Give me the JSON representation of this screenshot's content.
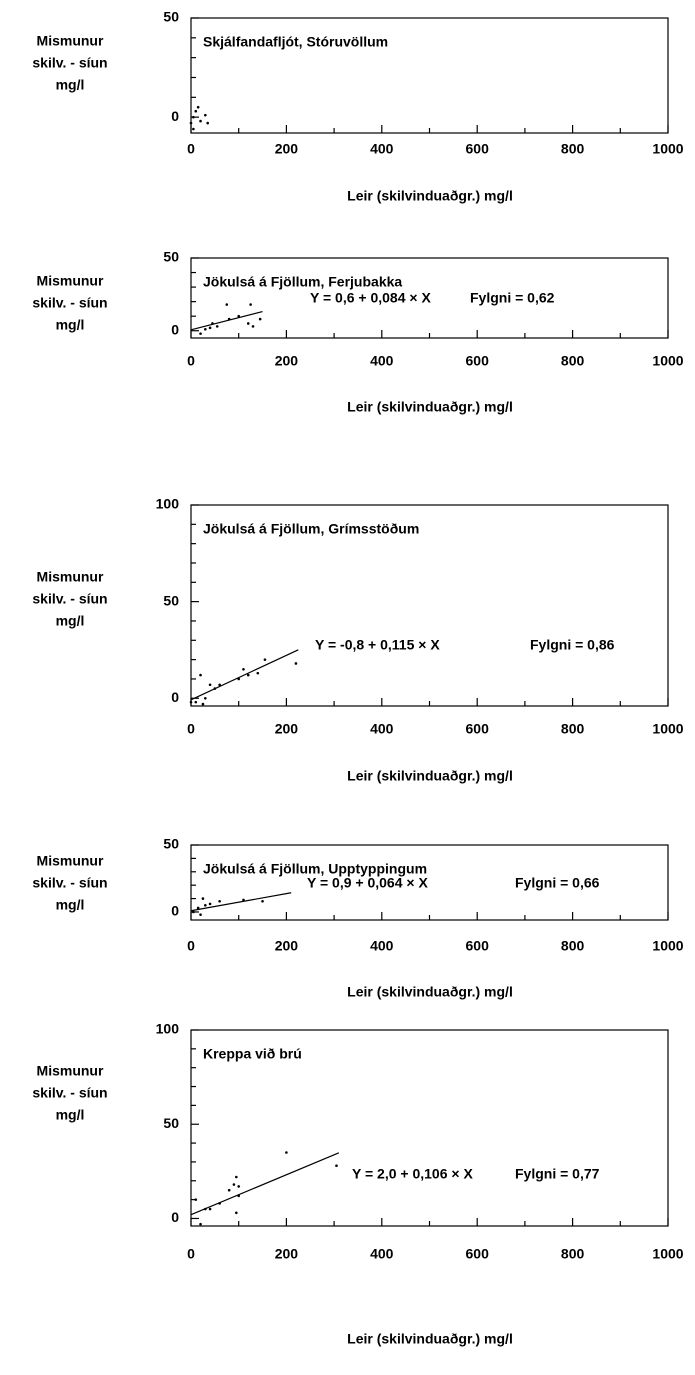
{
  "chart_data": [
    {
      "type": "scatter",
      "title": "Skjálfandafljót, Stóruvöllum",
      "ylabel": [
        "Mismunur",
        "skilv. - síun",
        "mg/l"
      ],
      "xlabel": "Leir (skilvinduaðgr.)  mg/l",
      "x": [
        0,
        5,
        10,
        15,
        20,
        30,
        35,
        5
      ],
      "values": [
        -3,
        0,
        3,
        5,
        -2,
        1,
        -3,
        -6
      ],
      "xlim": [
        0,
        1000
      ],
      "xticks": [
        0,
        200,
        400,
        600,
        800,
        1000
      ],
      "xminor_ticks": [
        100,
        300,
        500,
        700,
        900
      ],
      "ylim": [
        -8,
        50
      ],
      "yticks": [
        0,
        50
      ],
      "yminor_ticks": [
        10,
        20,
        30,
        40
      ],
      "color": "#000000"
    },
    {
      "type": "scatter",
      "title": "Jökulsá á Fjöllum, Ferjubakka",
      "ylabel": [
        "Mismunur",
        "skilv. - síun",
        "mg/l"
      ],
      "xlabel": "Leir (skilvinduaðgr.)  mg/l",
      "annotations": [
        "Y = 0,6 + 0,084 × X",
        "Fylgni = 0,62"
      ],
      "fit": {
        "intercept": 0.6,
        "slope": 0.084,
        "xmax": 150
      },
      "x": [
        20,
        30,
        40,
        45,
        55,
        75,
        80,
        100,
        120,
        125,
        130,
        145
      ],
      "values": [
        -2,
        1,
        2,
        5,
        3,
        18,
        8,
        10,
        5,
        18,
        3,
        8
      ],
      "xlim": [
        0,
        1000
      ],
      "xticks": [
        0,
        200,
        400,
        600,
        800,
        1000
      ],
      "xminor_ticks": [
        100,
        300,
        500,
        700,
        900
      ],
      "ylim": [
        -5,
        50
      ],
      "yticks": [
        0,
        50
      ],
      "yminor_ticks": [
        10,
        20,
        30,
        40
      ],
      "color": "#000000"
    },
    {
      "type": "scatter",
      "title": "Jökulsá á Fjöllum, Grímsstöðum",
      "ylabel": [
        "Mismunur",
        "skilv. - síun",
        "mg/l"
      ],
      "xlabel": "Leir (skilvinduaðgr.)  mg/l",
      "annotations": [
        "Y = -0,8 + 0,115 × X",
        "Fylgni = 0,86"
      ],
      "fit": {
        "intercept": -0.8,
        "slope": 0.115,
        "xmax": 225
      },
      "x": [
        0,
        10,
        20,
        25,
        30,
        40,
        50,
        60,
        100,
        110,
        120,
        140,
        155,
        220
      ],
      "values": [
        -2,
        -2,
        12,
        -3,
        0,
        7,
        5,
        7,
        10,
        15,
        12,
        13,
        20,
        18
      ],
      "xlim": [
        0,
        1000
      ],
      "xticks": [
        0,
        200,
        400,
        600,
        800,
        1000
      ],
      "xminor_ticks": [
        100,
        300,
        500,
        700,
        900
      ],
      "ylim": [
        -4,
        100
      ],
      "yticks": [
        0,
        50,
        100
      ],
      "yminor_ticks": [
        10,
        20,
        30,
        40,
        60,
        70,
        80,
        90
      ],
      "color": "#000000"
    },
    {
      "type": "scatter",
      "title": "Jökulsá á Fjöllum, Upptyppingum",
      "ylabel": [
        "Mismunur",
        "skilv. - síun",
        "mg/l"
      ],
      "xlabel": "Leir (skilvinduaðgr.)  mg/l",
      "annotations": [
        "Y = 0,9 + 0,064 × X",
        "Fylgni = 0,66"
      ],
      "fit": {
        "intercept": 0.9,
        "slope": 0.064,
        "xmax": 210
      },
      "x": [
        5,
        15,
        20,
        25,
        30,
        40,
        60,
        110,
        150
      ],
      "values": [
        0,
        3,
        -2,
        10,
        5,
        6,
        8,
        9,
        8
      ],
      "xlim": [
        0,
        1000
      ],
      "xticks": [
        0,
        200,
        400,
        600,
        800,
        1000
      ],
      "xminor_ticks": [
        100,
        300,
        500,
        700,
        900
      ],
      "ylim": [
        -6,
        50
      ],
      "yticks": [
        0,
        50
      ],
      "yminor_ticks": [
        10,
        20,
        30,
        40
      ],
      "color": "#000000"
    },
    {
      "type": "scatter",
      "title": "Kreppa við brú",
      "ylabel": [
        "Mismunur",
        "skilv. - síun",
        "mg/l"
      ],
      "xlabel": "Leir (skilvinduaðgr.)  mg/l",
      "annotations": [
        "Y = 2,0 + 0,106 × X",
        "Fylgni = 0,77"
      ],
      "fit": {
        "intercept": 2.0,
        "slope": 0.106,
        "xmax": 310
      },
      "x": [
        10,
        20,
        30,
        40,
        60,
        80,
        90,
        95,
        95,
        100,
        100,
        200,
        305
      ],
      "values": [
        10,
        -3,
        5,
        5,
        8,
        15,
        18,
        22,
        3,
        12,
        17,
        35,
        28
      ],
      "xlim": [
        0,
        1000
      ],
      "xticks": [
        0,
        200,
        400,
        600,
        800,
        1000
      ],
      "xminor_ticks": [
        100,
        300,
        500,
        700,
        900
      ],
      "ylim": [
        -4,
        100
      ],
      "yticks": [
        0,
        50,
        100
      ],
      "yminor_ticks": [
        10,
        20,
        30,
        40,
        60,
        70,
        80,
        90
      ],
      "color": "#000000"
    }
  ]
}
